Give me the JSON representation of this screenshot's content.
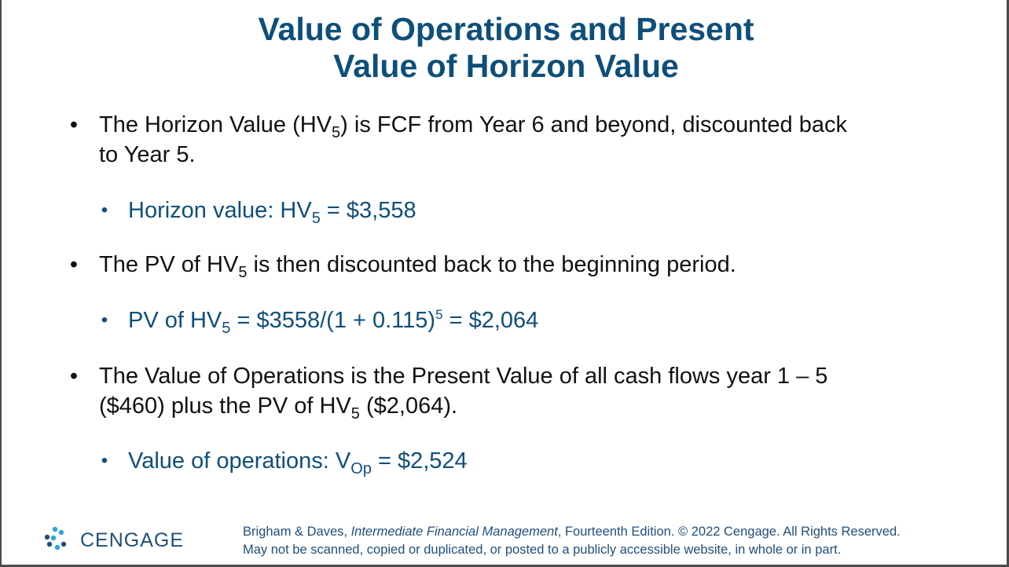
{
  "title": {
    "line1": "Value of Operations and Present",
    "line2": "Value of Horizon Value"
  },
  "bullets": {
    "b1": {
      "text_a": "The Horizon Value (HV",
      "sub": "5",
      "text_b": ") is FCF from Year 6 and beyond, discounted back",
      "text_c": "to Year 5."
    },
    "b1_sub": {
      "text_a": "Horizon value: HV",
      "sub": "5",
      "text_b": " = $3,558"
    },
    "b2": {
      "text_a": "The PV of HV",
      "sub": "5",
      "text_b": " is then discounted back to the beginning period."
    },
    "b2_sub": {
      "text_a": "PV of HV",
      "sub": "5",
      "text_b": " = $3558/(1 + 0.115)",
      "sup": "5",
      "text_c": " = $2,064"
    },
    "b3": {
      "text_a": "The Value of Operations is the Present Value of all cash flows year 1 – 5",
      "text_b": "($460) plus the PV of HV",
      "sub": "5",
      "text_c": " ($2,064)."
    },
    "b3_sub": {
      "text_a": "Value of operations: V",
      "sub": "Op",
      "text_b": " = $2,524"
    }
  },
  "footer": {
    "logo_icon": "cengage-logo-icon",
    "logo_text": "CENGAGE",
    "line1_a": "Brigham & Daves, ",
    "line1_italic": "Intermediate Financial Management",
    "line1_b": ", Fourteenth Edition. © 2022 Cengage. All Rights Reserved.",
    "line2": "May not be scanned, copied or duplicated, or posted to a publicly accessible website, in whole or in part."
  },
  "colors": {
    "title": "#0e4f7a",
    "body_text": "#111111",
    "sub_bullet": "#0e4f7a",
    "logo_blue": "#1f4f7a",
    "logo_accent": "#2aa6d8"
  }
}
